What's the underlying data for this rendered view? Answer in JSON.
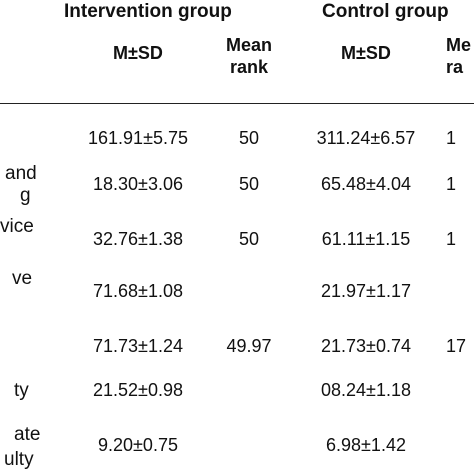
{
  "header": {
    "intervention_group": "Intervention group",
    "control_group": "Control group",
    "col_msd_1": "M±SD",
    "col_rank_1_line1": "Mean",
    "col_rank_1_line2": "rank",
    "col_msd_2": "M±SD",
    "col_rank_2_line1": "Me",
    "col_rank_2_line2": "ra"
  },
  "rows": [
    {
      "label_lines": [],
      "int_msd": "161.91±5.75",
      "int_rank": "50",
      "ctl_msd": "311.24±6.57",
      "ctl_rank": "1"
    },
    {
      "label_lines": [
        "and",
        "g"
      ],
      "int_msd": "18.30±3.06",
      "int_rank": "50",
      "ctl_msd": "65.48±4.04",
      "ctl_rank": "1"
    },
    {
      "label_lines": [
        "vice"
      ],
      "int_msd": "32.76±1.38",
      "int_rank": "50",
      "ctl_msd": "61.11±1.15",
      "ctl_rank": "1"
    },
    {
      "label_lines": [
        "ve"
      ],
      "int_msd": "71.68±1.08",
      "int_rank": "",
      "ctl_msd": "21.97±1.17",
      "ctl_rank": ""
    },
    {
      "label_lines": [],
      "int_msd": "71.73±1.24",
      "int_rank": "49.97",
      "ctl_msd": "21.73±0.74",
      "ctl_rank": "17"
    },
    {
      "label_lines": [
        "ty"
      ],
      "int_msd": "21.52±0.98",
      "int_rank": "",
      "ctl_msd": "08.24±1.18",
      "ctl_rank": ""
    },
    {
      "label_lines": [
        "ate",
        "ulty"
      ],
      "int_msd": "9.20±0.75",
      "int_rank": "",
      "ctl_msd": "6.98±1.42",
      "ctl_rank": ""
    }
  ]
}
